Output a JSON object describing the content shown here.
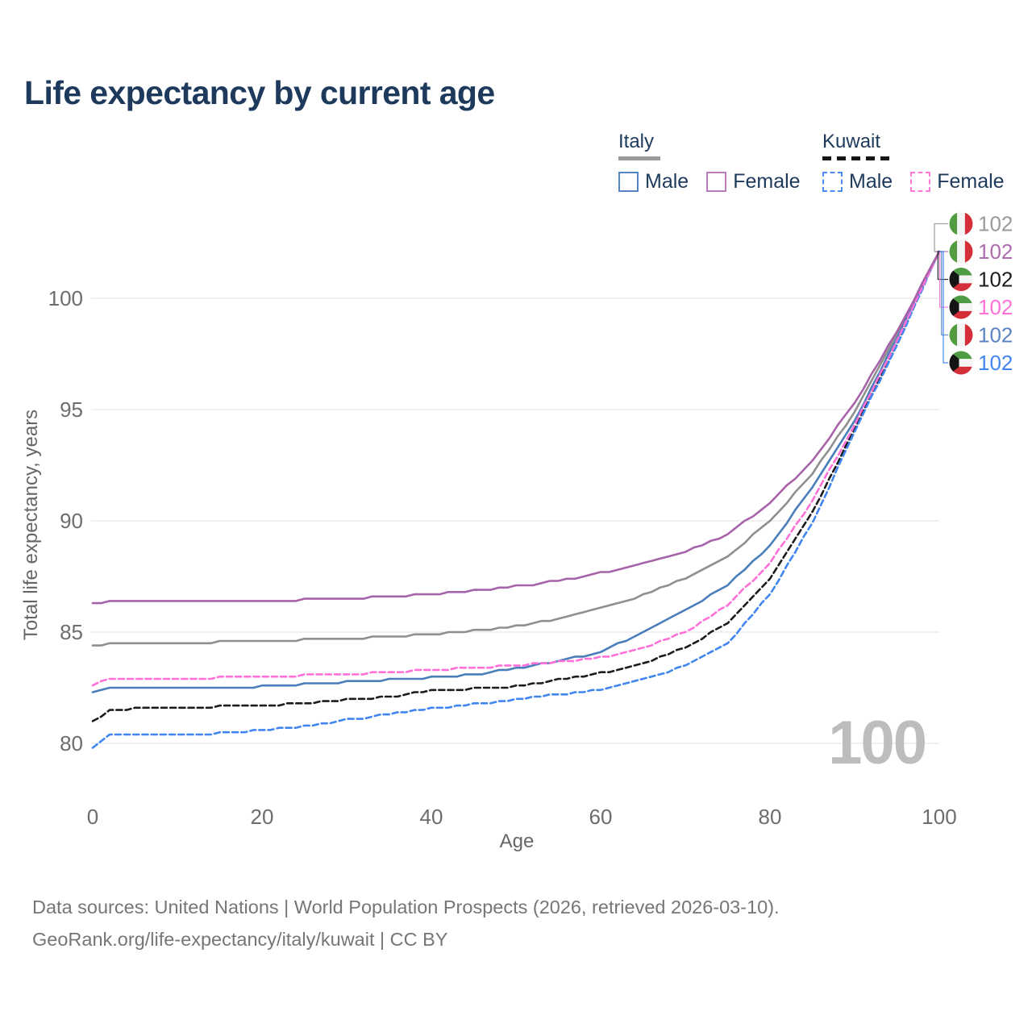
{
  "title": "Life expectancy by current age",
  "watermark": "100",
  "legend": {
    "groups": [
      {
        "name": "Italy",
        "line_style": "solid",
        "underline_color": "#999999",
        "items": [
          {
            "label": "Male",
            "color": "#5585c2"
          },
          {
            "label": "Female",
            "color": "#bb7cbe"
          }
        ]
      },
      {
        "name": "Kuwait",
        "line_style": "dashed",
        "underline_color": "#161616",
        "items": [
          {
            "label": "Male",
            "color": "#4d8df2"
          },
          {
            "label": "Female",
            "color": "#ff7ad8"
          }
        ]
      }
    ]
  },
  "end_labels": [
    {
      "flag": "italy",
      "series": "Italy both sexes",
      "value": "102",
      "color": "#9a9a9a"
    },
    {
      "flag": "italy",
      "series": "Italy female",
      "value": "102",
      "color": "#ae6cb0"
    },
    {
      "flag": "kuwait",
      "series": "Kuwait both sexes",
      "value": "102",
      "color": "#1c1c1c"
    },
    {
      "flag": "kuwait",
      "series": "Kuwait female",
      "value": "102",
      "color": "#ff70d8"
    },
    {
      "flag": "italy",
      "series": "Italy male",
      "value": "102",
      "color": "#5b84c4"
    },
    {
      "flag": "kuwait",
      "series": "Kuwait male",
      "value": "102",
      "color": "#4186f0"
    }
  ],
  "footer": {
    "line1": "Data sources: United Nations | World Population Prospects (2026, retrieved 2026-03-10).",
    "line2": "GeoRank.org/life-expectancy/italy/kuwait | CC BY"
  },
  "chart_data": {
    "type": "line",
    "title": "Life expectancy by current age",
    "xlabel": "Age",
    "ylabel": "Total life expectancy, years",
    "xlim": [
      0,
      100
    ],
    "ylim": [
      78.5,
      103
    ],
    "x_ticks": [
      0,
      20,
      40,
      60,
      80,
      100
    ],
    "y_ticks": [
      80,
      85,
      90,
      95,
      100
    ],
    "grid": "horizontal",
    "legend_position": "top-right",
    "x": [
      0,
      2,
      5,
      10,
      15,
      20,
      25,
      30,
      35,
      40,
      45,
      50,
      55,
      60,
      65,
      70,
      75,
      80,
      85,
      90,
      95,
      100
    ],
    "series": [
      {
        "name": "Italy — Both sexes",
        "country": "Italy",
        "sex": "Both",
        "style": "solid",
        "color": "#8f8f8f",
        "values": [
          84.35,
          84.5,
          84.5,
          84.5,
          84.55,
          84.55,
          84.65,
          84.7,
          84.8,
          84.9,
          85.05,
          85.25,
          85.6,
          86.05,
          86.65,
          87.4,
          88.4,
          90.0,
          92.1,
          94.9,
          98.4,
          102.1
        ]
      },
      {
        "name": "Italy — Male",
        "country": "Italy",
        "sex": "Male",
        "style": "solid",
        "color": "#4a7ebb",
        "values": [
          82.25,
          82.45,
          82.45,
          82.45,
          82.5,
          82.55,
          82.65,
          82.75,
          82.85,
          82.95,
          83.1,
          83.35,
          83.7,
          84.1,
          85.0,
          86.0,
          87.1,
          88.9,
          91.5,
          94.5,
          98.2,
          102.1
        ]
      },
      {
        "name": "Kuwait — Both sexes",
        "country": "Kuwait",
        "sex": "Both",
        "style": "dashed",
        "color": "#1c1c1c",
        "values": [
          80.95,
          81.5,
          81.55,
          81.6,
          81.65,
          81.7,
          81.8,
          81.95,
          82.1,
          82.35,
          82.45,
          82.55,
          82.85,
          83.15,
          83.6,
          84.3,
          85.4,
          87.4,
          90.4,
          94.1,
          98.0,
          102.1
        ]
      },
      {
        "name": "Kuwait — Male",
        "country": "Kuwait",
        "sex": "Male",
        "style": "dashed",
        "color": "#4186f0",
        "values": [
          79.8,
          80.35,
          80.4,
          80.4,
          80.45,
          80.6,
          80.75,
          81.05,
          81.3,
          81.55,
          81.75,
          81.95,
          82.2,
          82.4,
          82.85,
          83.5,
          84.5,
          86.7,
          89.9,
          94.0,
          97.9,
          102.1
        ]
      },
      {
        "name": "Kuwait — Female",
        "country": "Kuwait",
        "sex": "Female",
        "style": "dashed",
        "color": "#ff70d8",
        "values": [
          82.6,
          82.9,
          82.9,
          82.9,
          82.95,
          83.0,
          83.05,
          83.1,
          83.2,
          83.3,
          83.4,
          83.5,
          83.65,
          83.85,
          84.3,
          85.0,
          86.2,
          88.1,
          90.9,
          94.3,
          98.1,
          102.1
        ]
      },
      {
        "name": "Italy — Female",
        "country": "Italy",
        "sex": "Female",
        "style": "solid",
        "color": "#a763a9",
        "values": [
          86.25,
          86.35,
          86.35,
          86.35,
          86.4,
          86.4,
          86.45,
          86.5,
          86.6,
          86.7,
          86.85,
          87.05,
          87.3,
          87.65,
          88.05,
          88.6,
          89.4,
          90.8,
          92.7,
          95.3,
          98.5,
          102.1
        ]
      }
    ],
    "converge_value_at_age_100": 102
  }
}
